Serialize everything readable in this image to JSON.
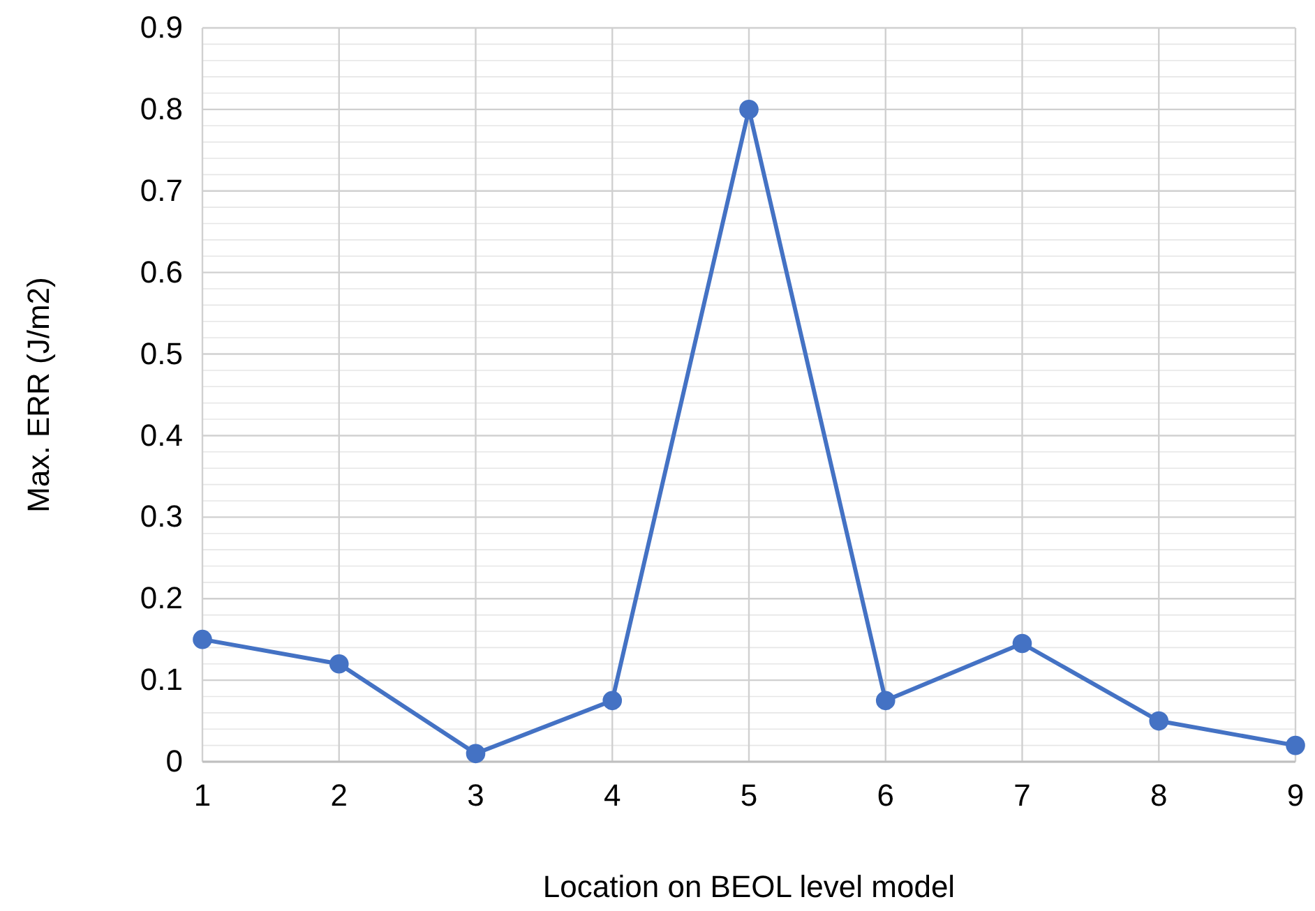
{
  "chart_data": {
    "type": "line",
    "xlabel": "Location on BEOL level model",
    "ylabel": "Max. ERR (J/m2)",
    "x": [
      1,
      2,
      3,
      4,
      5,
      6,
      7,
      8,
      9
    ],
    "series": [
      {
        "color": "#4472c4",
        "values": [
          0.15,
          0.12,
          0.01,
          0.075,
          0.8,
          0.075,
          0.145,
          0.05,
          0.02
        ]
      }
    ],
    "xlim": [
      1,
      9
    ],
    "xticks": [
      1,
      2,
      3,
      4,
      5,
      6,
      7,
      8,
      9
    ],
    "ylim": [
      0,
      0.9
    ],
    "yticks": [
      0,
      {
        "value": 0.02,
        "label": null
      },
      {
        "value": 0.04,
        "label": null
      },
      {
        "value": 0.06,
        "label": null
      },
      {
        "value": 0.08,
        "label": null
      },
      0.1,
      {
        "value": 0.12,
        "label": null
      },
      {
        "value": 0.14,
        "label": null
      },
      {
        "value": 0.16,
        "label": null
      },
      {
        "value": 0.18,
        "label": null
      },
      0.2,
      {
        "value": 0.22,
        "label": null
      },
      {
        "value": 0.24,
        "label": null
      },
      {
        "value": 0.26,
        "label": null
      },
      {
        "value": 0.28,
        "label": null
      },
      0.3,
      {
        "value": 0.32,
        "label": null
      },
      {
        "value": 0.34,
        "label": null
      },
      {
        "value": 0.36,
        "label": null
      },
      {
        "value": 0.38,
        "label": null
      },
      0.4,
      {
        "value": 0.42,
        "label": null
      },
      {
        "value": 0.44,
        "label": null
      },
      {
        "value": 0.46,
        "label": null
      },
      {
        "value": 0.48,
        "label": null
      },
      0.5,
      {
        "value": 0.52,
        "label": null
      },
      {
        "value": 0.54,
        "label": null
      },
      {
        "value": 0.56,
        "label": null
      },
      {
        "value": 0.58,
        "label": null
      },
      0.6,
      {
        "value": 0.62,
        "label": null
      },
      {
        "value": 0.64,
        "label": null
      },
      {
        "value": 0.66,
        "label": null
      },
      {
        "value": 0.68,
        "label": null
      },
      0.7,
      {
        "value": 0.72,
        "label": null
      },
      {
        "value": 0.74,
        "label": null
      },
      {
        "value": 0.76,
        "label": null
      },
      {
        "value": 0.78,
        "label": null
      },
      0.8,
      {
        "value": 0.82,
        "label": null
      },
      {
        "value": 0.84,
        "label": null
      },
      {
        "value": 0.86,
        "label": null
      },
      {
        "value": 0.88,
        "label": null
      },
      0.9
    ],
    "grid": true,
    "marker": "circle",
    "line_style": "solid"
  }
}
